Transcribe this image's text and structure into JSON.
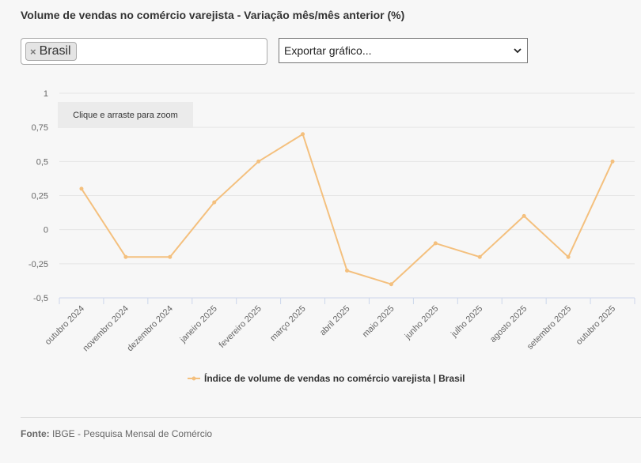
{
  "title": "Volume de vendas no comércio varejista - Variação mês/mês anterior (%)",
  "filter": {
    "tag_label": "Brasil",
    "remove_symbol": "×"
  },
  "export": {
    "label": "Exportar gráfico..."
  },
  "zoom_hint": "Clique e arraste para zoom",
  "source": {
    "label": "Fonte:",
    "text": "IBGE - Pesquisa Mensal de Comércio"
  },
  "colors": {
    "series": "#f4c07e",
    "grid": "#e6e6e6",
    "axis": "#ccd6eb"
  },
  "chart_data": {
    "type": "line",
    "categories": [
      "outubro 2024",
      "novembro 2024",
      "dezembro 2024",
      "janeiro 2025",
      "fevereiro 2025",
      "março 2025",
      "abril 2025",
      "maio 2025",
      "junho 2025",
      "julho 2025",
      "agosto 2025",
      "setembro 2025",
      "outubro 2025"
    ],
    "series": [
      {
        "name": "Índice de volume de vendas no comércio varejista | Brasil",
        "values": [
          0.3,
          -0.2,
          -0.2,
          0.2,
          0.5,
          0.7,
          -0.3,
          -0.4,
          -0.1,
          -0.2,
          0.1,
          -0.2,
          0.5
        ]
      }
    ],
    "y_ticks": [
      "1",
      "0,75",
      "0,5",
      "0,25",
      "0",
      "-0,25",
      "-0,5"
    ],
    "ylim": [
      -0.5,
      1
    ],
    "grid": true,
    "legend": "bottom-center"
  }
}
